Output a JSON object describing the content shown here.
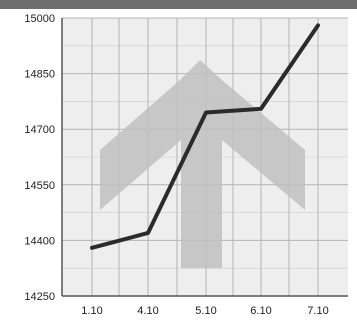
{
  "chart_data": {
    "type": "line",
    "categories": [
      "1.10",
      "4.10",
      "5.10",
      "6.10",
      "7.10"
    ],
    "values": [
      14380,
      14420,
      14745,
      14755,
      14980
    ],
    "ylim": [
      14250,
      15000
    ],
    "yticks": [
      "14250",
      "14400",
      "14550",
      "14700",
      "14850",
      "15000"
    ],
    "grid": true,
    "legend": "none"
  },
  "colors": {
    "background": "#ffffff",
    "plot_background": "#eeeeee",
    "grid": "#b4b4b4",
    "line": "#2b2b2b",
    "arrow": "#bfbfbf",
    "axis": "#555555",
    "top_band": "#6e6e6e"
  },
  "icons": {
    "watermark": "up-arrow-icon"
  }
}
